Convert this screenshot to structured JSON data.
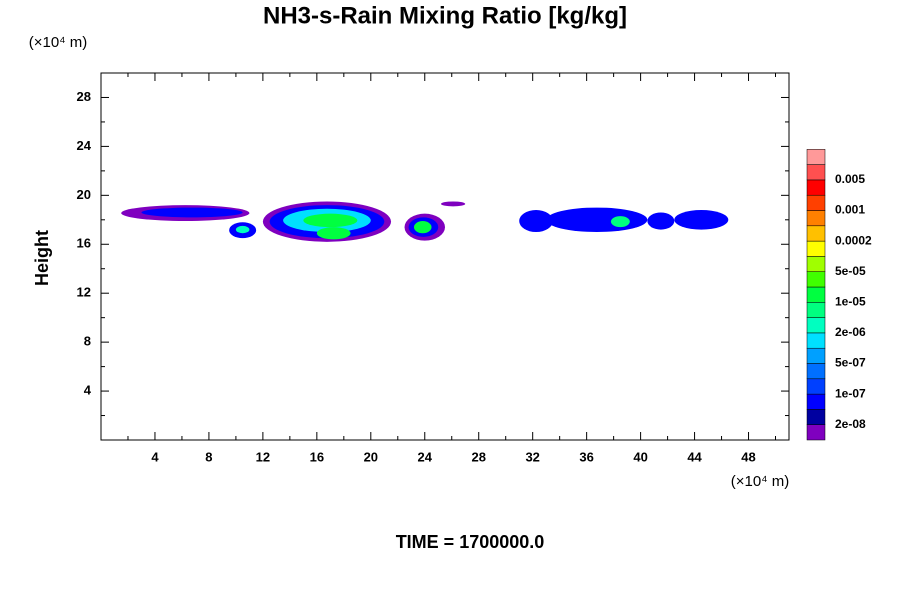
{
  "chart_data": {
    "type": "contour",
    "title": "NH3-s-Rain Mixing Ratio [kg/kg]",
    "x_unit": "(×10⁴ m)",
    "y_unit": "(×10⁴ m)",
    "y_label": "Height",
    "footer": "TIME = 1700000.0",
    "xlim": [
      0,
      51
    ],
    "ylim": [
      0,
      30
    ],
    "xticks": [
      4,
      8,
      12,
      16,
      20,
      24,
      28,
      32,
      36,
      40,
      44,
      48
    ],
    "xticks_minor": [
      2,
      6,
      10,
      14,
      18,
      22,
      26,
      30,
      34,
      38,
      42,
      46,
      50
    ],
    "yticks": [
      4,
      8,
      12,
      16,
      20,
      24,
      28
    ],
    "yticks_minor": [
      2,
      6,
      10,
      14,
      18,
      22,
      26
    ],
    "colors": [
      "#7f00bf",
      "#0000a0",
      "#0000ff",
      "#0040ff",
      "#0070ff",
      "#00a0ff",
      "#00e0ff",
      "#00ffc0",
      "#00ff80",
      "#00ff40",
      "#40ff00",
      "#a0ff00",
      "#ffff00",
      "#ffc000",
      "#ff8000",
      "#ff4000",
      "#ff0000",
      "#ff5050",
      "#ff9999"
    ],
    "levels": [
      {
        "value": 2e-08,
        "label": "2e-08"
      },
      {
        "value": 1e-07,
        "label": "1e-07"
      },
      {
        "value": 5e-07,
        "label": "5e-07"
      },
      {
        "value": 2e-06,
        "label": "2e-06"
      },
      {
        "value": 1e-05,
        "label": "1e-05"
      },
      {
        "value": 5e-05,
        "label": "5e-05"
      },
      {
        "value": 0.0002,
        "label": "0.0002"
      },
      {
        "value": 0.001,
        "label": "0.001"
      },
      {
        "value": 0.005,
        "label": "0.005"
      }
    ],
    "cells": [
      {
        "x": [
          1.5,
          11
        ],
        "y": [
          17.9,
          19.2
        ],
        "level": 0
      },
      {
        "x": [
          3,
          10.5
        ],
        "y": [
          18.2,
          19.0
        ],
        "level": 2
      },
      {
        "x": [
          9.5,
          11.5
        ],
        "y": [
          16.5,
          17.8
        ],
        "level": 2
      },
      {
        "x": [
          10,
          11
        ],
        "y": [
          16.9,
          17.5
        ],
        "level": 7
      },
      {
        "x": [
          12,
          21.5
        ],
        "y": [
          16.2,
          19.5
        ],
        "level": 0
      },
      {
        "x": [
          12.5,
          21
        ],
        "y": [
          16.5,
          19.2
        ],
        "level": 2
      },
      {
        "x": [
          13.5,
          20
        ],
        "y": [
          17,
          18.9
        ],
        "level": 6
      },
      {
        "x": [
          15,
          19
        ],
        "y": [
          17.4,
          18.5
        ],
        "level": 9
      },
      {
        "x": [
          16,
          18.5
        ],
        "y": [
          16.4,
          17.4
        ],
        "level": 9
      },
      {
        "x": [
          22.5,
          25.5
        ],
        "y": [
          16.3,
          18.5
        ],
        "level": 0
      },
      {
        "x": [
          22.8,
          25
        ],
        "y": [
          16.6,
          18.2
        ],
        "level": 2
      },
      {
        "x": [
          23.2,
          24.5
        ],
        "y": [
          16.9,
          17.9
        ],
        "level": 9
      },
      {
        "x": [
          25.2,
          27
        ],
        "y": [
          19.1,
          19.5
        ],
        "level": 0
      },
      {
        "x": [
          31,
          33.5
        ],
        "y": [
          17,
          18.8
        ],
        "level": 2
      },
      {
        "x": [
          33,
          40.5
        ],
        "y": [
          17,
          19
        ],
        "level": 2
      },
      {
        "x": [
          37.8,
          39.2
        ],
        "y": [
          17.4,
          18.3
        ],
        "level": 8
      },
      {
        "x": [
          40.5,
          42.5
        ],
        "y": [
          17.2,
          18.6
        ],
        "level": 2
      },
      {
        "x": [
          42.5,
          46.5
        ],
        "y": [
          17.2,
          18.8
        ],
        "level": 2
      }
    ]
  }
}
